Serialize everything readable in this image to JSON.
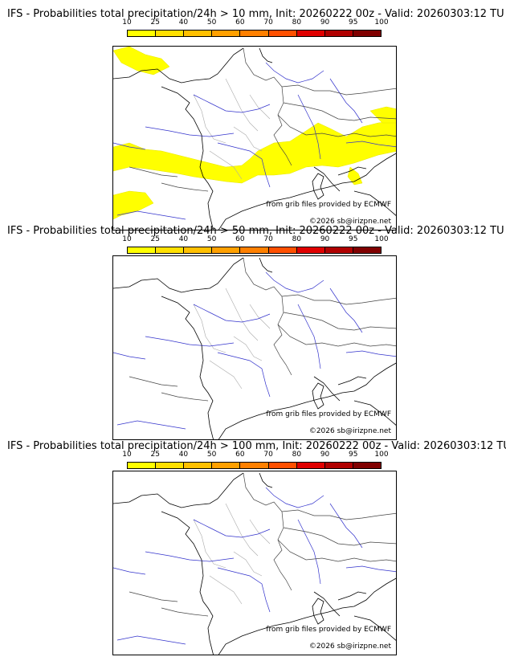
{
  "scale": {
    "ticks": [
      "10",
      "25",
      "40",
      "50",
      "60",
      "70",
      "80",
      "90",
      "95",
      "100"
    ],
    "colors": [
      "#ffff00",
      "#ffe000",
      "#ffc000",
      "#ffa000",
      "#ff8000",
      "#ff5000",
      "#e00000",
      "#b00000",
      "#800000"
    ]
  },
  "panels": [
    {
      "title": "IFS - Probabilities total precipitation/24h > 10 mm, Init: 20260222 00z - Valid: 20260303:12 TU",
      "credit": "from grib files provided by ECMWF",
      "copyright": "©2026 sb@irizpne.net",
      "has_precip": true
    },
    {
      "title": "IFS - Probabilities total precipitation/24h > 50 mm, Init: 20260222 00z - Valid: 20260303:12 TU",
      "credit": "from grib files provided by ECMWF",
      "copyright": "©2026 sb@irizpne.net",
      "has_precip": false
    },
    {
      "title": "IFS - Probabilities total precipitation/24h > 100 mm, Init: 20260222 00z - Valid: 20260303:12 TU",
      "credit": "from grib files provided by ECMWF",
      "copyright": "©2026 sb@irizpne.net",
      "has_precip": false
    }
  ]
}
